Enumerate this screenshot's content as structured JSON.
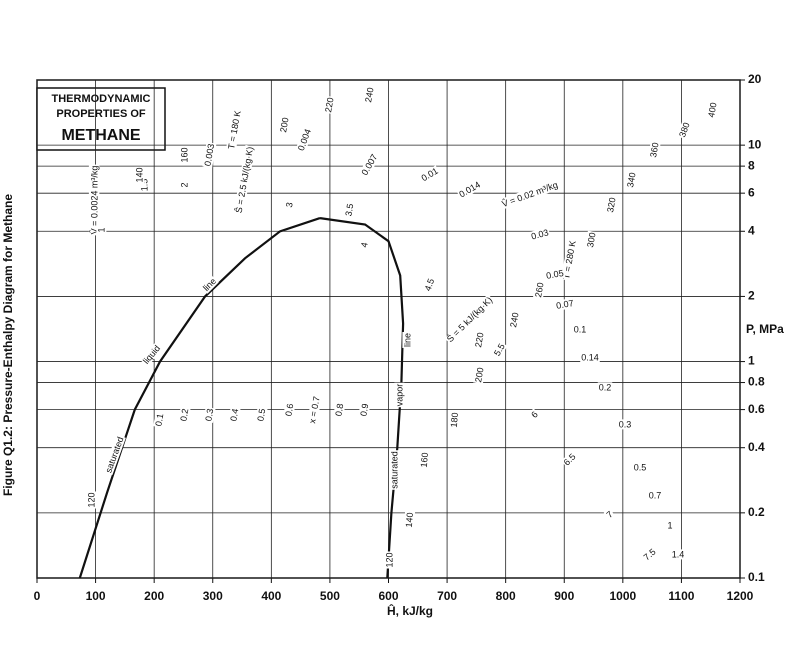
{
  "chart_data": {
    "type": "line",
    "title_lines": [
      "THERMODYNAMIC",
      "PROPERTIES OF"
    ],
    "subtitle": "METHANE",
    "caption": "Figure Q1.2: Pressure-Enthalpy Diagram for Methane",
    "x_label": "Ĥ, kJ/kg",
    "y_label": "P, MPa",
    "xlim": [
      0,
      1200
    ],
    "xticks": [
      0,
      100,
      200,
      300,
      400,
      500,
      600,
      700,
      800,
      900,
      1000,
      1100,
      1200
    ],
    "ylim": [
      0.1,
      20
    ],
    "yticks": [
      0.1,
      0.2,
      0.4,
      0.6,
      0.8,
      1,
      2,
      4,
      6,
      8,
      10,
      20
    ],
    "log_scale_y": true,
    "grid": true,
    "series": [
      {
        "color": "#111111",
        "x": [
          73,
          120,
          167,
          210,
          287,
          355,
          415,
          483
        ],
        "values": [
          0.1,
          0.25,
          0.6,
          1,
          2,
          3,
          4,
          4.6
        ]
      },
      {
        "color": "#111111",
        "x": [
          483,
          560,
          600,
          620,
          625,
          622,
          615,
          605,
          598
        ],
        "values": [
          4.6,
          4.3,
          3.6,
          2.5,
          1.5,
          0.8,
          0.4,
          0.2,
          0.1
        ]
      }
    ],
    "annotations": [
      "saturated",
      "liquid",
      "line",
      "vapor",
      "line",
      "saturated",
      "x = 0.7",
      "0.1",
      "0.2",
      "0.3",
      "0.4",
      "0.5",
      "0.6",
      "0.8",
      "0.9",
      "T = 280 K",
      "300",
      "320",
      "340",
      "360",
      "380",
      "400",
      "240",
      "220",
      "200",
      "180",
      "160",
      "140",
      "120",
      "120",
      "V̂ = 0.0024 m³/kg",
      "0.003",
      "0.004",
      "0.007",
      "0.01",
      "0.014",
      "V̂ = 0.02 m³/kg",
      "0.03",
      "0.05",
      "0.07",
      "0.1",
      "0.14",
      "0.2",
      "0.3",
      "0.5",
      "0.7",
      "1",
      "1.4",
      "Ŝ = 2.5 kJ/(kg·K)",
      "3",
      "3.5",
      "4",
      "4.5",
      "Ŝ = 5 kJ/(kg·K)",
      "5.5",
      "6",
      "6.5",
      "7",
      "7.5",
      "1",
      "1.5",
      "2",
      "160",
      "140",
      "T = 180 K",
      "260",
      "220",
      "240",
      "200"
    ]
  }
}
